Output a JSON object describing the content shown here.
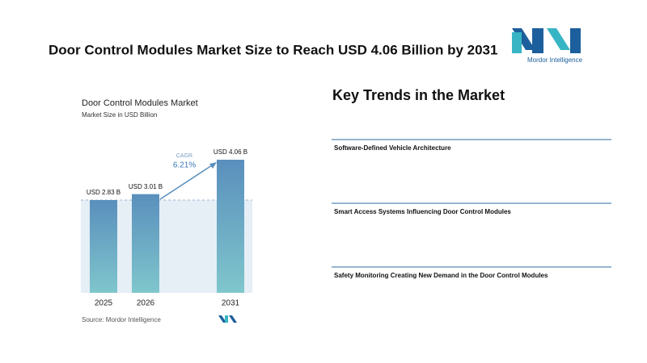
{
  "title": "Door Control Modules Market Size to Reach USD 4.06 Billion by 2031",
  "logo_text": "Mordor Intelligence",
  "chart_data": {
    "type": "bar",
    "title": "Door Control Modules Market",
    "subtitle": "Market Size in USD Billion",
    "categories": [
      "2025",
      "2026",
      "2031"
    ],
    "values": [
      2.83,
      3.01,
      4.06
    ],
    "value_labels": [
      "USD 2.83 B",
      "USD 3.01 B",
      "USD 4.06 B"
    ],
    "cagr_label": "CAGR",
    "cagr_value": "6.21%",
    "source": "Source: Mordor Intelligence",
    "color": "#5a8fbd"
  },
  "trends": {
    "title": "Key Trends in the Market",
    "items": [
      "Software-Defined Vehicle Architecture",
      "Smart Access Systems Influencing Door Control Modules",
      "Safety Monitoring Creating New Demand in the Door Control Modules"
    ]
  }
}
